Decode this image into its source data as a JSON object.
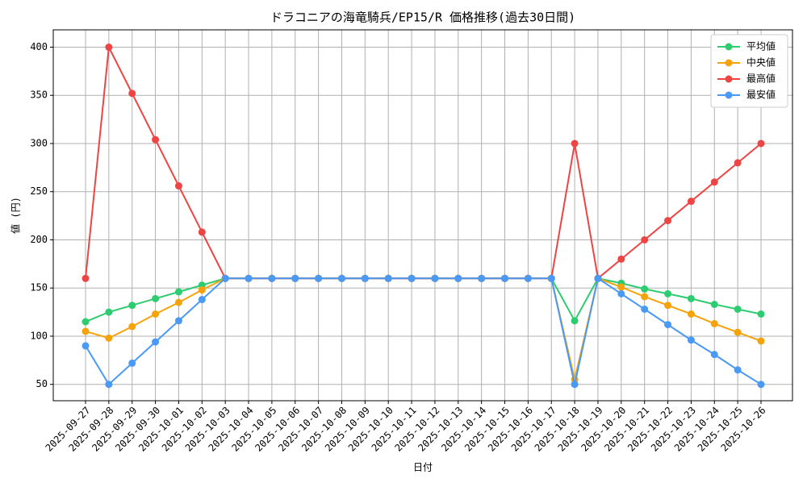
{
  "chart_data": {
    "type": "line",
    "title": "ドラコニアの海竜騎兵/EP15/R 価格推移(過去30日間)",
    "x_label": "日付",
    "y_label": "値 (円)",
    "categories": [
      "2025-09-27",
      "2025-09-28",
      "2025-09-29",
      "2025-09-30",
      "2025-10-01",
      "2025-10-02",
      "2025-10-03",
      "2025-10-04",
      "2025-10-05",
      "2025-10-06",
      "2025-10-07",
      "2025-10-08",
      "2025-10-09",
      "2025-10-10",
      "2025-10-11",
      "2025-10-12",
      "2025-10-13",
      "2025-10-14",
      "2025-10-15",
      "2025-10-16",
      "2025-10-17",
      "2025-10-18",
      "2025-10-19",
      "2025-10-20",
      "2025-10-21",
      "2025-10-22",
      "2025-10-23",
      "2025-10-24",
      "2025-10-25",
      "2025-10-26"
    ],
    "series": [
      {
        "name": "平均値",
        "color": "#2ecc71",
        "values": [
          115,
          125,
          132,
          139,
          146,
          153,
          160,
          160,
          160,
          160,
          160,
          160,
          160,
          160,
          160,
          160,
          160,
          160,
          160,
          160,
          160,
          116,
          160,
          155,
          149,
          144,
          139,
          133,
          128,
          123
        ]
      },
      {
        "name": "中央値",
        "color": "#f5a30a",
        "values": [
          105,
          98,
          110,
          123,
          135,
          148,
          160,
          160,
          160,
          160,
          160,
          160,
          160,
          160,
          160,
          160,
          160,
          160,
          160,
          160,
          160,
          55,
          160,
          151,
          141,
          132,
          123,
          113,
          104,
          95
        ]
      },
      {
        "name": "最高値",
        "color": "#ef4444",
        "values": [
          160,
          400,
          352,
          304,
          256,
          208,
          160,
          160,
          160,
          160,
          160,
          160,
          160,
          160,
          160,
          160,
          160,
          160,
          160,
          160,
          160,
          300,
          160,
          180,
          200,
          220,
          240,
          260,
          280,
          300
        ]
      },
      {
        "name": "最安値",
        "color": "#4a9af5",
        "values": [
          90,
          50,
          72,
          94,
          116,
          138,
          160,
          160,
          160,
          160,
          160,
          160,
          160,
          160,
          160,
          160,
          160,
          160,
          160,
          160,
          160,
          50,
          160,
          144,
          128,
          112,
          96,
          81,
          65,
          50
        ]
      }
    ],
    "ylim": [
      33,
      418
    ],
    "yticks": [
      50,
      100,
      150,
      200,
      250,
      300,
      350,
      400
    ],
    "grid": true,
    "legend": "upper right"
  }
}
